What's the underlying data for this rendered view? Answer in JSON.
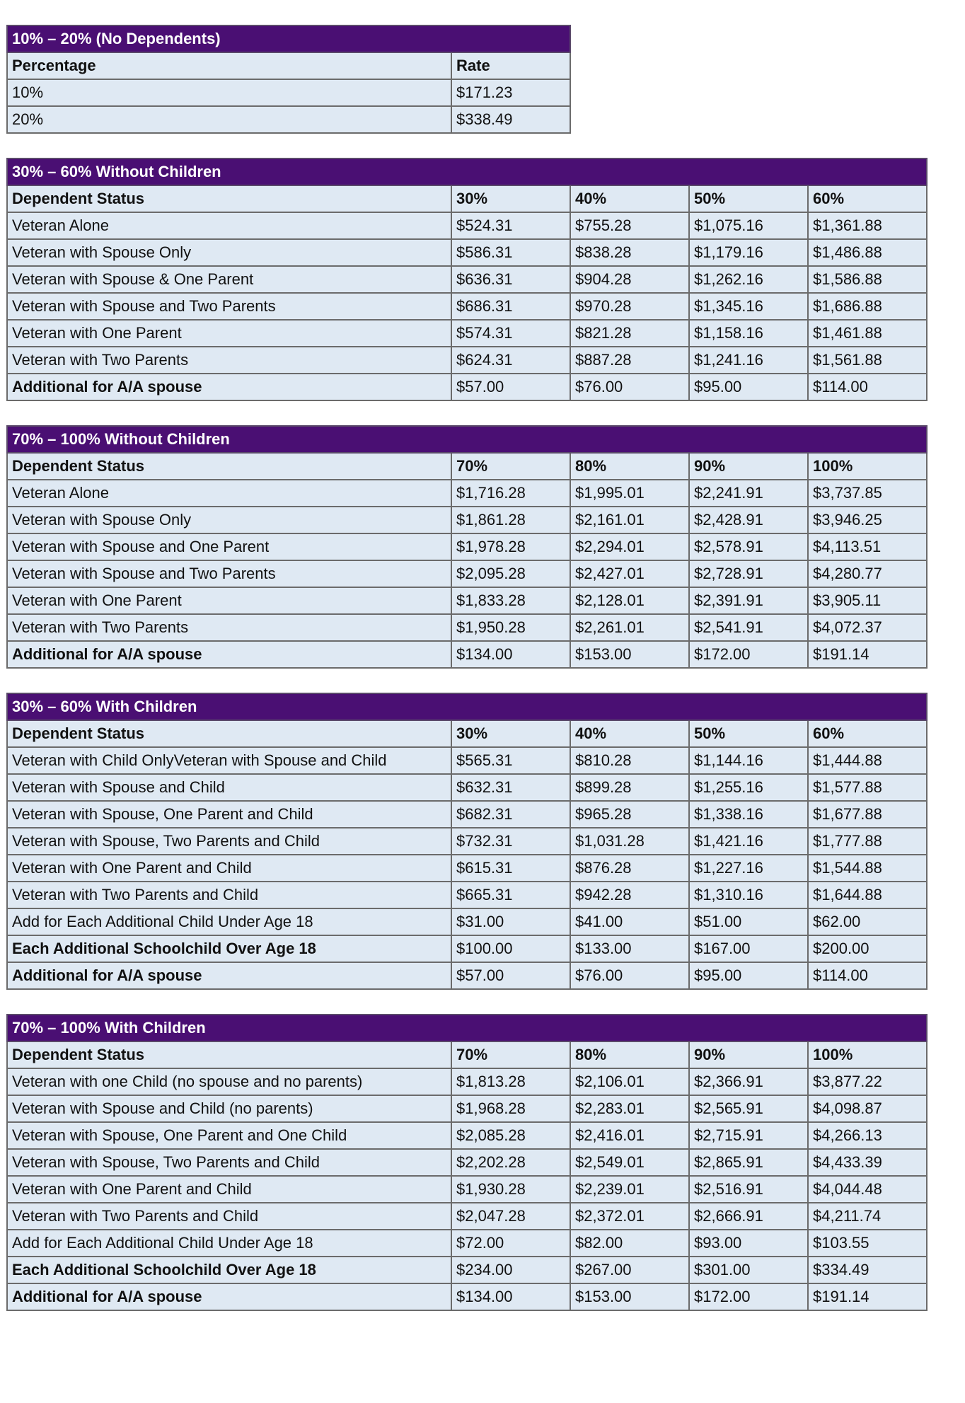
{
  "colors": {
    "header_bg": "#4a0f73",
    "cell_bg": "#dfe9f3",
    "border": "#6b6b6b"
  },
  "tables": [
    {
      "title": "10% – 20% (No Dependents)",
      "columns": [
        "Percentage",
        "Rate"
      ],
      "rows": [
        {
          "label": "10%",
          "values": [
            "$171.23"
          ]
        },
        {
          "label": "20%",
          "values": [
            "$338.49"
          ]
        }
      ]
    },
    {
      "title": "30% – 60% Without Children",
      "columns": [
        "Dependent Status",
        "30%",
        "40%",
        "50%",
        "60%"
      ],
      "rows": [
        {
          "label": "Veteran Alone",
          "values": [
            "$524.31",
            "$755.28",
            "$1,075.16",
            "$1,361.88"
          ]
        },
        {
          "label": "Veteran with Spouse Only",
          "values": [
            "$586.31",
            "$838.28",
            "$1,179.16",
            "$1,486.88"
          ]
        },
        {
          "label": "Veteran with Spouse & One Parent",
          "values": [
            "$636.31",
            "$904.28",
            "$1,262.16",
            "$1,586.88"
          ]
        },
        {
          "label": "Veteran with Spouse and Two Parents",
          "values": [
            "$686.31",
            "$970.28",
            "$1,345.16",
            "$1,686.88"
          ]
        },
        {
          "label": "Veteran with One Parent",
          "values": [
            "$574.31",
            "$821.28",
            "$1,158.16",
            "$1,461.88"
          ]
        },
        {
          "label": "Veteran with Two Parents",
          "values": [
            "$624.31",
            "$887.28",
            "$1,241.16",
            "$1,561.88"
          ]
        },
        {
          "label": "Additional for A/A spouse",
          "bold": true,
          "values": [
            "$57.00",
            "$76.00",
            "$95.00",
            "$114.00"
          ]
        }
      ]
    },
    {
      "title": "70% – 100% Without Children",
      "columns": [
        "Dependent Status",
        "70%",
        "80%",
        "90%",
        "100%"
      ],
      "rows": [
        {
          "label": "Veteran Alone",
          "values": [
            "$1,716.28",
            "$1,995.01",
            "$2,241.91",
            "$3,737.85"
          ]
        },
        {
          "label": "Veteran with Spouse Only",
          "values": [
            "$1,861.28",
            "$2,161.01",
            "$2,428.91",
            "$3,946.25"
          ]
        },
        {
          "label": "Veteran with Spouse and One Parent",
          "values": [
            "$1,978.28",
            "$2,294.01",
            "$2,578.91",
            "$4,113.51"
          ]
        },
        {
          "label": "Veteran with Spouse and Two Parents",
          "values": [
            "$2,095.28",
            "$2,427.01",
            "$2,728.91",
            "$4,280.77"
          ]
        },
        {
          "label": "Veteran with One Parent",
          "values": [
            "$1,833.28",
            "$2,128.01",
            "$2,391.91",
            "$3,905.11"
          ]
        },
        {
          "label": "Veteran with Two Parents",
          "values": [
            "$1,950.28",
            "$2,261.01",
            "$2,541.91",
            "$4,072.37"
          ]
        },
        {
          "label": "Additional for A/A spouse",
          "bold": true,
          "values": [
            "$134.00",
            "$153.00",
            "$172.00",
            "$191.14"
          ]
        }
      ]
    },
    {
      "title": "30% – 60% With Children",
      "columns": [
        "Dependent Status",
        "30%",
        "40%",
        "50%",
        "60%"
      ],
      "rows": [
        {
          "label": "Veteran with Child OnlyVeteran with Spouse and Child",
          "values": [
            "$565.31",
            "$810.28",
            "$1,144.16",
            "$1,444.88"
          ]
        },
        {
          "label": "Veteran with Spouse and Child",
          "values": [
            "$632.31",
            "$899.28",
            "$1,255.16",
            "$1,577.88"
          ]
        },
        {
          "label": "Veteran with Spouse, One Parent and Child",
          "values": [
            "$682.31",
            "$965.28",
            "$1,338.16",
            "$1,677.88"
          ]
        },
        {
          "label": "Veteran with Spouse, Two Parents and Child",
          "values": [
            "$732.31",
            "$1,031.28",
            "$1,421.16",
            "$1,777.88"
          ]
        },
        {
          "label": "Veteran with One Parent and Child",
          "values": [
            "$615.31",
            "$876.28",
            "$1,227.16",
            "$1,544.88"
          ]
        },
        {
          "label": "Veteran with Two Parents and Child",
          "values": [
            "$665.31",
            "$942.28",
            "$1,310.16",
            "$1,644.88"
          ]
        },
        {
          "label": "Add for Each Additional Child Under Age 18",
          "values": [
            "$31.00",
            "$41.00",
            "$51.00",
            "$62.00"
          ]
        },
        {
          "label": "Each Additional Schoolchild Over Age 18",
          "bold": true,
          "values": [
            "$100.00",
            "$133.00",
            "$167.00",
            "$200.00"
          ]
        },
        {
          "label": "Additional for A/A spouse",
          "bold": true,
          "values": [
            "$57.00",
            "$76.00",
            "$95.00",
            "$114.00"
          ]
        }
      ]
    },
    {
      "title": "70% – 100% With Children",
      "columns": [
        "Dependent Status",
        "70%",
        "80%",
        "90%",
        "100%"
      ],
      "rows": [
        {
          "label": "Veteran with one Child (no spouse and no parents)",
          "values": [
            "$1,813.28",
            "$2,106.01",
            "$2,366.91",
            "$3,877.22"
          ]
        },
        {
          "label": "Veteran with Spouse and Child (no parents)",
          "values": [
            "$1,968.28",
            "$2,283.01",
            "$2,565.91",
            "$4,098.87"
          ]
        },
        {
          "label": "Veteran with Spouse, One Parent and One Child",
          "values": [
            "$2,085.28",
            "$2,416.01",
            "$2,715.91",
            "$4,266.13"
          ]
        },
        {
          "label": "Veteran with Spouse, Two Parents and Child",
          "values": [
            "$2,202.28",
            "$2,549.01",
            "$2,865.91",
            "$4,433.39"
          ]
        },
        {
          "label": "Veteran with One Parent and Child",
          "values": [
            "$1,930.28",
            "$2,239.01",
            "$2,516.91",
            "$4,044.48"
          ]
        },
        {
          "label": "Veteran with Two Parents and Child",
          "values": [
            "$2,047.28",
            "$2,372.01",
            "$2,666.91",
            "$4,211.74"
          ]
        },
        {
          "label": "Add for Each Additional Child Under Age 18",
          "values": [
            "$72.00",
            "$82.00",
            "$93.00",
            "$103.55"
          ]
        },
        {
          "label": "Each Additional Schoolchild Over Age 18",
          "bold": true,
          "values": [
            "$234.00",
            "$267.00",
            "$301.00",
            "$334.49"
          ]
        },
        {
          "label": "Additional for A/A spouse",
          "bold": true,
          "values": [
            "$134.00",
            "$153.00",
            "$172.00",
            "$191.14"
          ]
        }
      ]
    }
  ]
}
